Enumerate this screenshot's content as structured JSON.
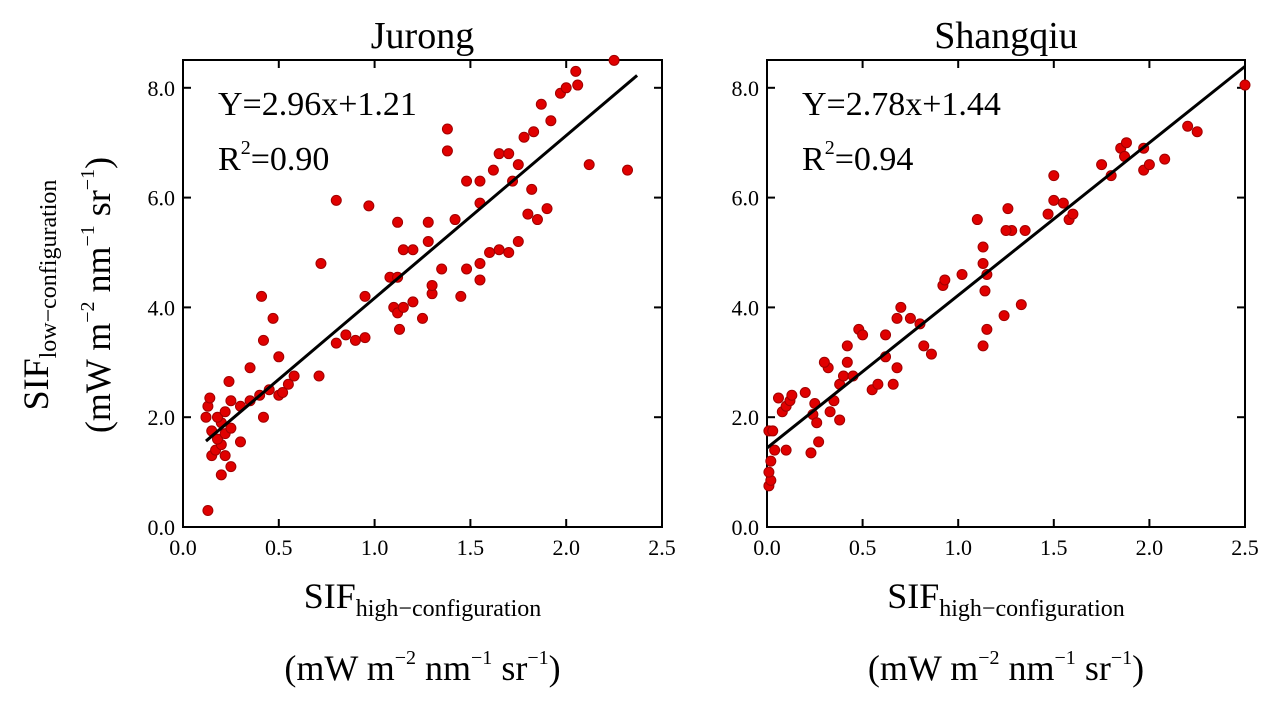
{
  "chart_data": [
    {
      "type": "scatter",
      "title": "Jurong",
      "xlabel": {
        "main": "SIF",
        "sub": "high−configuration"
      },
      "ylabel": {
        "main": "SIF",
        "sub": "low−configuration"
      },
      "units": {
        "open": "(mW m",
        "e1": "−2",
        "p2": " nm",
        "e2": "−1",
        "p3": " sr",
        "e3": "−1",
        "close": ")"
      },
      "equation": "Y=2.96x+1.21",
      "r2_prefix": "R",
      "r2_exp": "2",
      "r2_value": "=0.90",
      "fit": {
        "slope": 2.96,
        "intercept": 1.21,
        "x_range": [
          0.12,
          2.37
        ]
      },
      "xlim": [
        0,
        2.5
      ],
      "ylim": [
        0,
        8.5
      ],
      "xticks": [
        "0.0",
        "0.5",
        "1.0",
        "1.5",
        "2.0",
        "2.5"
      ],
      "yticks": [
        "0.0",
        "2.0",
        "4.0",
        "6.0",
        "8.0"
      ],
      "point_color": "#e00000",
      "fit_color": "#000000",
      "points": [
        [
          0.13,
          0.3
        ],
        [
          0.2,
          0.95
        ],
        [
          0.25,
          1.1
        ],
        [
          0.22,
          1.3
        ],
        [
          0.15,
          1.3
        ],
        [
          0.17,
          1.4
        ],
        [
          0.2,
          1.5
        ],
        [
          0.18,
          1.6
        ],
        [
          0.22,
          1.7
        ],
        [
          0.25,
          1.8
        ],
        [
          0.2,
          1.9
        ],
        [
          0.15,
          1.75
        ],
        [
          0.3,
          1.55
        ],
        [
          0.12,
          2.0
        ],
        [
          0.13,
          2.2
        ],
        [
          0.14,
          2.35
        ],
        [
          0.18,
          2.0
        ],
        [
          0.22,
          2.1
        ],
        [
          0.25,
          2.3
        ],
        [
          0.3,
          2.2
        ],
        [
          0.35,
          2.3
        ],
        [
          0.4,
          2.4
        ],
        [
          0.42,
          2.0
        ],
        [
          0.45,
          2.5
        ],
        [
          0.5,
          2.4
        ],
        [
          0.52,
          2.45
        ],
        [
          0.55,
          2.6
        ],
        [
          0.58,
          2.75
        ],
        [
          0.24,
          2.65
        ],
        [
          0.35,
          2.9
        ],
        [
          0.5,
          3.1
        ],
        [
          0.47,
          3.8
        ],
        [
          0.42,
          3.4
        ],
        [
          0.41,
          4.2
        ],
        [
          0.71,
          2.75
        ],
        [
          0.72,
          4.8
        ],
        [
          0.8,
          3.35
        ],
        [
          0.85,
          3.5
        ],
        [
          0.9,
          3.4
        ],
        [
          0.95,
          3.45
        ],
        [
          0.8,
          5.95
        ],
        [
          0.97,
          5.85
        ],
        [
          0.95,
          4.2
        ],
        [
          1.08,
          4.55
        ],
        [
          1.12,
          4.55
        ],
        [
          1.1,
          4.0
        ],
        [
          1.12,
          3.9
        ],
        [
          1.15,
          4.0
        ],
        [
          1.2,
          4.1
        ],
        [
          1.13,
          3.6
        ],
        [
          1.25,
          3.8
        ],
        [
          1.3,
          4.25
        ],
        [
          1.3,
          4.4
        ],
        [
          1.35,
          4.7
        ],
        [
          1.45,
          4.2
        ],
        [
          1.48,
          4.7
        ],
        [
          1.55,
          4.8
        ],
        [
          1.6,
          5.0
        ],
        [
          1.65,
          5.05
        ],
        [
          1.7,
          5.0
        ],
        [
          1.75,
          5.2
        ],
        [
          1.55,
          4.5
        ],
        [
          1.12,
          5.55
        ],
        [
          1.28,
          5.55
        ],
        [
          1.28,
          5.2
        ],
        [
          1.42,
          5.6
        ],
        [
          1.15,
          5.05
        ],
        [
          1.2,
          5.05
        ],
        [
          1.48,
          6.3
        ],
        [
          1.55,
          6.3
        ],
        [
          1.55,
          5.9
        ],
        [
          1.62,
          6.5
        ],
        [
          1.65,
          6.8
        ],
        [
          1.7,
          6.8
        ],
        [
          1.75,
          6.6
        ],
        [
          1.82,
          6.15
        ],
        [
          1.8,
          5.7
        ],
        [
          1.85,
          5.6
        ],
        [
          1.9,
          5.8
        ],
        [
          1.38,
          7.25
        ],
        [
          1.38,
          6.85
        ],
        [
          1.72,
          6.3
        ],
        [
          1.78,
          7.1
        ],
        [
          1.83,
          7.2
        ],
        [
          1.87,
          7.7
        ],
        [
          1.92,
          7.4
        ],
        [
          1.97,
          7.9
        ],
        [
          2.0,
          8.0
        ],
        [
          2.05,
          8.3
        ],
        [
          2.06,
          8.05
        ],
        [
          2.12,
          6.6
        ],
        [
          2.32,
          6.5
        ],
        [
          2.25,
          8.5
        ]
      ]
    },
    {
      "type": "scatter",
      "title": "Shangqiu",
      "xlabel": {
        "main": "SIF",
        "sub": "high−configuration"
      },
      "units": {
        "open": "(mW m",
        "e1": "−2",
        "p2": " nm",
        "e2": "−1",
        "p3": " sr",
        "e3": "−1",
        "close": ")"
      },
      "equation": "Y=2.78x+1.44",
      "r2_prefix": "R",
      "r2_exp": "2",
      "r2_value": "=0.94",
      "fit": {
        "slope": 2.78,
        "intercept": 1.44,
        "x_range": [
          0,
          2.5
        ]
      },
      "xlim": [
        0,
        2.5
      ],
      "ylim": [
        0,
        8.5
      ],
      "xticks": [
        "0.0",
        "0.5",
        "1.0",
        "1.5",
        "2.0",
        "2.5"
      ],
      "yticks": [
        "0.0",
        "2.0",
        "4.0",
        "6.0",
        "8.0"
      ],
      "point_color": "#e00000",
      "fit_color": "#000000",
      "points": [
        [
          0.01,
          0.75
        ],
        [
          0.02,
          0.85
        ],
        [
          0.01,
          1.0
        ],
        [
          0.02,
          1.2
        ],
        [
          0.04,
          1.4
        ],
        [
          0.01,
          1.75
        ],
        [
          0.03,
          1.75
        ],
        [
          0.1,
          1.4
        ],
        [
          0.08,
          2.1
        ],
        [
          0.1,
          2.2
        ],
        [
          0.12,
          2.3
        ],
        [
          0.06,
          2.35
        ],
        [
          0.13,
          2.4
        ],
        [
          0.2,
          2.45
        ],
        [
          0.25,
          2.25
        ],
        [
          0.24,
          2.05
        ],
        [
          0.26,
          1.9
        ],
        [
          0.27,
          1.55
        ],
        [
          0.23,
          1.35
        ],
        [
          0.32,
          2.9
        ],
        [
          0.3,
          3.0
        ],
        [
          0.38,
          2.6
        ],
        [
          0.4,
          2.75
        ],
        [
          0.42,
          3.0
        ],
        [
          0.45,
          2.75
        ],
        [
          0.48,
          3.6
        ],
        [
          0.42,
          3.3
        ],
        [
          0.5,
          3.5
        ],
        [
          0.35,
          2.3
        ],
        [
          0.38,
          1.95
        ],
        [
          0.33,
          2.1
        ],
        [
          0.55,
          2.5
        ],
        [
          0.58,
          2.6
        ],
        [
          0.62,
          3.1
        ],
        [
          0.66,
          2.6
        ],
        [
          0.68,
          2.9
        ],
        [
          0.62,
          3.5
        ],
        [
          0.68,
          3.8
        ],
        [
          0.7,
          4.0
        ],
        [
          0.75,
          3.8
        ],
        [
          0.8,
          3.7
        ],
        [
          0.82,
          3.3
        ],
        [
          0.86,
          3.15
        ],
        [
          0.92,
          4.4
        ],
        [
          0.93,
          4.5
        ],
        [
          1.02,
          4.6
        ],
        [
          1.13,
          4.8
        ],
        [
          1.15,
          4.6
        ],
        [
          1.14,
          4.3
        ],
        [
          1.15,
          3.6
        ],
        [
          1.13,
          3.3
        ],
        [
          1.13,
          5.1
        ],
        [
          1.1,
          5.6
        ],
        [
          1.26,
          5.8
        ],
        [
          1.28,
          5.4
        ],
        [
          1.35,
          5.4
        ],
        [
          1.33,
          4.05
        ],
        [
          1.24,
          3.85
        ],
        [
          1.25,
          5.4
        ],
        [
          1.47,
          5.7
        ],
        [
          1.5,
          5.95
        ],
        [
          1.55,
          5.9
        ],
        [
          1.58,
          5.6
        ],
        [
          1.6,
          5.7
        ],
        [
          1.5,
          6.4
        ],
        [
          1.75,
          6.6
        ],
        [
          1.8,
          6.4
        ],
        [
          1.85,
          6.9
        ],
        [
          1.88,
          7.0
        ],
        [
          1.87,
          6.75
        ],
        [
          1.97,
          6.5
        ],
        [
          2.0,
          6.6
        ],
        [
          1.97,
          6.9
        ],
        [
          2.08,
          6.7
        ],
        [
          2.2,
          7.3
        ],
        [
          2.25,
          7.2
        ],
        [
          2.5,
          8.05
        ]
      ]
    }
  ]
}
